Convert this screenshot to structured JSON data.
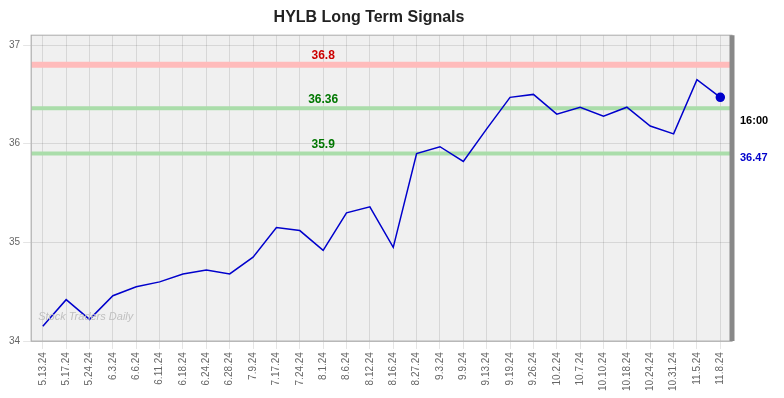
{
  "chart_data": {
    "type": "line",
    "title": "HYLB Long Term Signals",
    "categories": [
      "5.13.24",
      "5.17.24",
      "5.24.24",
      "6.3.24",
      "6.6.24",
      "6.11.24",
      "6.18.24",
      "6.24.24",
      "6.28.24",
      "7.9.24",
      "7.17.24",
      "7.24.24",
      "8.1.24",
      "8.6.24",
      "8.12.24",
      "8.16.24",
      "8.27.24",
      "9.3.24",
      "9.9.24",
      "9.13.24",
      "9.19.24",
      "9.26.24",
      "10.2.24",
      "10.7.24",
      "10.10.24",
      "10.18.24",
      "10.24.24",
      "10.31.24",
      "11.5.24",
      "11.8.24"
    ],
    "values": [
      34.15,
      34.42,
      34.22,
      34.46,
      34.55,
      34.6,
      34.68,
      34.72,
      34.68,
      34.85,
      35.15,
      35.12,
      34.92,
      35.3,
      35.36,
      34.95,
      35.9,
      35.97,
      35.82,
      36.15,
      36.47,
      36.5,
      36.3,
      36.37,
      36.28,
      36.37,
      36.18,
      36.1,
      36.65,
      36.47
    ],
    "color": "#0000cc",
    "ylim": [
      34.0,
      37.1
    ],
    "yticks": [
      34,
      35,
      36,
      37
    ],
    "grid": true,
    "annotations": [
      {
        "text": "36.8",
        "y": 36.8,
        "color": "#cc0000",
        "line_color": "#ffbbbb"
      },
      {
        "text": "36.36",
        "y": 36.36,
        "color": "#007700",
        "line_color": "#aaddaa"
      },
      {
        "text": "35.9",
        "y": 35.9,
        "color": "#007700",
        "line_color": "#aaddaa"
      },
      {
        "text": "16:00",
        "color": "#000000"
      },
      {
        "text": "36.47",
        "color": "#0000cc"
      }
    ],
    "watermark": {
      "text": "Stock Traders Daily",
      "color": "#c0c0c0"
    }
  }
}
